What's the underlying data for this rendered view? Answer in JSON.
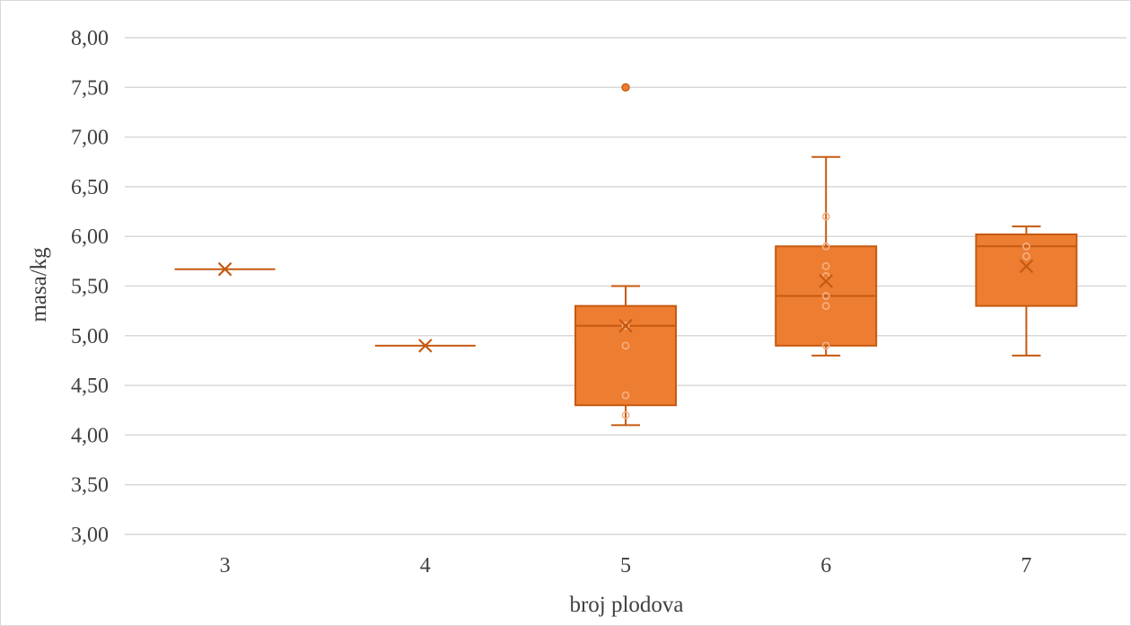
{
  "chart_data": {
    "type": "box",
    "xlabel": "broj plodova",
    "ylabel": "masa/kg",
    "ylim": [
      3.0,
      8.0
    ],
    "ytick_step": 0.5,
    "ytick_labels": [
      "3,00",
      "3,50",
      "4,00",
      "4,50",
      "5,00",
      "5,50",
      "6,00",
      "6,50",
      "7,00",
      "7,50",
      "8,00"
    ],
    "categories": [
      "3",
      "4",
      "5",
      "6",
      "7"
    ],
    "grid": true,
    "legend": "none",
    "color": "#ED7D31",
    "box_fill": "#ED7D31",
    "stroke": "#C55A11",
    "boxes": [
      {
        "category": "3",
        "min": 5.67,
        "q1": 5.67,
        "median": 5.67,
        "q3": 5.67,
        "max": 5.67,
        "mean": 5.67,
        "points": [],
        "outliers": []
      },
      {
        "category": "4",
        "min": 4.9,
        "q1": 4.9,
        "median": 4.9,
        "q3": 4.9,
        "max": 4.9,
        "mean": 4.9,
        "points": [],
        "outliers": []
      },
      {
        "category": "5",
        "min": 4.1,
        "q1": 4.3,
        "median": 5.1,
        "q3": 5.3,
        "max": 5.5,
        "mean": 5.1,
        "points": [
          4.2,
          4.4,
          4.9,
          5.1
        ],
        "outliers": [
          7.5
        ]
      },
      {
        "category": "6",
        "min": 4.8,
        "q1": 4.9,
        "median": 5.4,
        "q3": 5.9,
        "max": 6.8,
        "mean": 5.55,
        "points": [
          4.9,
          5.3,
          5.4,
          5.6,
          5.7,
          5.9,
          6.2
        ],
        "outliers": []
      },
      {
        "category": "7",
        "min": 4.8,
        "q1": 5.3,
        "median": 5.9,
        "q3": 6.02,
        "max": 6.1,
        "mean": 5.7,
        "points": [
          5.8,
          5.9
        ],
        "outliers": []
      }
    ]
  }
}
